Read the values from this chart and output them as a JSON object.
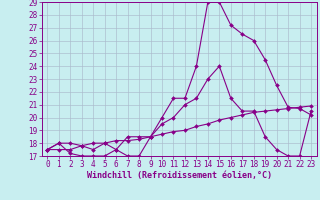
{
  "title": "",
  "xlabel": "Windchill (Refroidissement éolien,°C)",
  "ylabel": "",
  "bg_color": "#c8eef0",
  "line_color": "#880088",
  "grid_color": "#aabbcc",
  "xlim": [
    -0.5,
    23.5
  ],
  "ylim": [
    17,
    29
  ],
  "xticks": [
    0,
    1,
    2,
    3,
    4,
    5,
    6,
    7,
    8,
    9,
    10,
    11,
    12,
    13,
    14,
    15,
    16,
    17,
    18,
    19,
    20,
    21,
    22,
    23
  ],
  "yticks": [
    17,
    18,
    19,
    20,
    21,
    22,
    23,
    24,
    25,
    26,
    27,
    28,
    29
  ],
  "line1_x": [
    0,
    1,
    2,
    3,
    4,
    5,
    6,
    7,
    8,
    9,
    10,
    11,
    12,
    13,
    14,
    15,
    16,
    17,
    18,
    19,
    20,
    21,
    22,
    23
  ],
  "line1_y": [
    17.5,
    18.0,
    17.2,
    17.0,
    17.0,
    17.0,
    17.5,
    17.0,
    17.0,
    18.5,
    20.0,
    21.5,
    21.5,
    24.0,
    29.0,
    29.0,
    27.2,
    26.5,
    26.0,
    24.5,
    22.5,
    20.8,
    20.7,
    20.2
  ],
  "line2_x": [
    0,
    1,
    2,
    3,
    4,
    5,
    6,
    7,
    8,
    9,
    10,
    11,
    12,
    13,
    14,
    15,
    16,
    17,
    18,
    19,
    20,
    21,
    22,
    23
  ],
  "line2_y": [
    17.5,
    18.0,
    18.0,
    17.8,
    17.5,
    18.0,
    17.5,
    18.5,
    18.5,
    18.5,
    19.5,
    20.0,
    21.0,
    21.5,
    23.0,
    24.0,
    21.5,
    20.5,
    20.5,
    18.5,
    17.5,
    17.0,
    17.0,
    20.5
  ],
  "line3_x": [
    0,
    1,
    2,
    3,
    4,
    5,
    6,
    7,
    8,
    9,
    10,
    11,
    12,
    13,
    14,
    15,
    16,
    17,
    18,
    19,
    20,
    21,
    22,
    23
  ],
  "line3_y": [
    17.5,
    17.5,
    17.5,
    17.8,
    18.0,
    18.0,
    18.2,
    18.2,
    18.3,
    18.5,
    18.7,
    18.9,
    19.0,
    19.3,
    19.5,
    19.8,
    20.0,
    20.2,
    20.4,
    20.5,
    20.6,
    20.7,
    20.8,
    20.9
  ],
  "tick_fontsize": 5.5,
  "xlabel_fontsize": 6.0,
  "marker_size": 2.0
}
